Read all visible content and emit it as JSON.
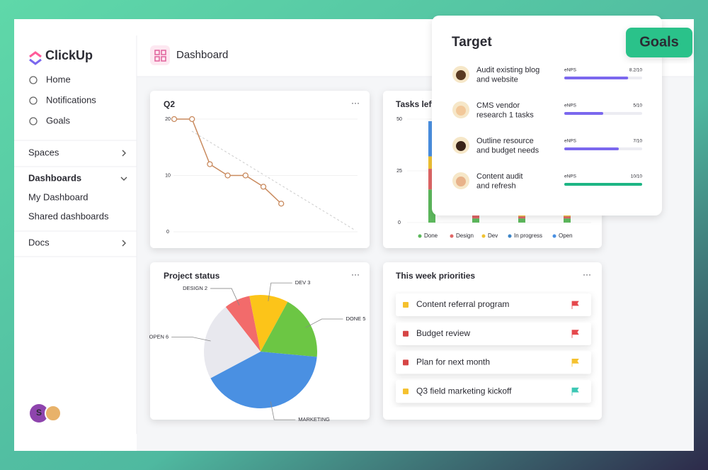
{
  "sidebar": {
    "brand": "ClickUp",
    "nav": [
      "Home",
      "Notifications",
      "Goals"
    ],
    "sections": [
      {
        "title": "Spaces"
      },
      {
        "title": "Dashboards",
        "items": [
          "My Dashboard",
          "Shared dashboards"
        ]
      },
      {
        "title": "Docs"
      }
    ],
    "avatar": "S"
  },
  "header": {
    "title": "Dashboard"
  },
  "chart_data": [
    {
      "type": "line",
      "title": "Q2",
      "categories": [
        null,
        null,
        null,
        null,
        null,
        null,
        null
      ],
      "values": [
        20,
        20,
        12,
        10,
        10,
        8,
        5
      ],
      "color": "#c98a5e",
      "ylim": [
        0,
        20
      ],
      "yticks": [
        0,
        10,
        20
      ],
      "grid": true
    },
    {
      "type": "bar",
      "title": "Tasks left",
      "stacked": true,
      "categories": [
        null,
        null,
        null,
        null
      ],
      "series": [
        {
          "name": "Done",
          "color": "#5cb85c",
          "values": [
            16,
            2,
            2,
            2
          ]
        },
        {
          "name": "Design",
          "color": "#e06666",
          "values": [
            10,
            2,
            1,
            1
          ]
        },
        {
          "name": "Dev",
          "color": "#f1c232",
          "values": [
            6,
            1,
            1,
            1
          ]
        },
        {
          "name": "In progress",
          "color": "#3d85c6",
          "values": [
            0,
            1,
            1,
            1
          ]
        },
        {
          "name": "Open",
          "color": "#4a90e2",
          "values": [
            17,
            2,
            2,
            2
          ]
        }
      ],
      "ylim": [
        0,
        50
      ],
      "yticks": [
        0,
        25,
        50
      ],
      "grid": true
    },
    {
      "type": "pie",
      "title": "Project status",
      "categories": [
        "DESIGN 2",
        "DEV 3",
        "DONE 5",
        "MARKETING",
        "OPEN 6"
      ],
      "values": [
        2,
        3,
        5,
        11,
        6
      ],
      "colors": [
        "#f26b6b",
        "#fcc419",
        "#6cc644",
        "#4a90e2",
        "#e8e8ee"
      ]
    }
  ],
  "priorities": {
    "title": "This week priorities",
    "items": [
      {
        "text": "Content referral program",
        "color": "#f5c12e",
        "flag": "#e5484d"
      },
      {
        "text": "Budget review",
        "color": "#d64545",
        "flag": "#e5484d"
      },
      {
        "text": "Plan for next month",
        "color": "#d64545",
        "flag": "#f5c12e"
      },
      {
        "text": "Q3 field marketing kickoff",
        "color": "#f5c12e",
        "flag": "#3cc7b4"
      }
    ]
  },
  "target": {
    "title": "Target",
    "badge": "Goals",
    "xlim": [
      0,
      10
    ],
    "items": [
      {
        "lines": [
          "Audit existing blog",
          "and website"
        ],
        "metric": "eNPS",
        "value": 8.2,
        "value_label": "8.2/10",
        "color": "#7b68ee"
      },
      {
        "lines": [
          "CMS vendor",
          "research 1 tasks"
        ],
        "metric": "eNPS",
        "value": 5,
        "value_label": "5/10",
        "color": "#7b68ee"
      },
      {
        "lines": [
          "Outline resource",
          "and budget needs"
        ],
        "metric": "eNPS",
        "value": 7,
        "value_label": "7/10",
        "color": "#7b68ee"
      },
      {
        "lines": [
          "Content audit",
          "and refresh"
        ],
        "metric": "eNPS",
        "value": 10,
        "value_label": "10/10",
        "color": "#1db584"
      }
    ]
  }
}
